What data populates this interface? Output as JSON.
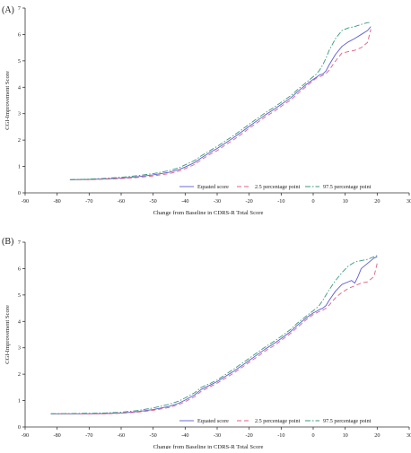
{
  "chart_data": [
    {
      "type": "line",
      "panel_label": "(A)",
      "xlabel": "Change from Baseline in CDRS-R Total Score",
      "ylabel": "CGI-Improvement Score",
      "xlim": [
        -90,
        30
      ],
      "ylim": [
        0,
        7
      ],
      "x_ticks": [
        "-90",
        "-80",
        "-70",
        "-60",
        "-50",
        "-40",
        "-30",
        "-20",
        "-10",
        "0",
        "10",
        "20",
        "30"
      ],
      "y_ticks": [
        "0",
        "1",
        "2",
        "3",
        "4",
        "5",
        "6",
        "7"
      ],
      "grid": false,
      "legend_position": "bottom-right",
      "series": [
        {
          "name": "Equated score",
          "color": "#5b5bd6",
          "dash": "solid",
          "points": [
            [
              -76,
              0.5
            ],
            [
              -70,
              0.51
            ],
            [
              -65,
              0.53
            ],
            [
              -60,
              0.56
            ],
            [
              -55,
              0.61
            ],
            [
              -50,
              0.68
            ],
            [
              -45,
              0.78
            ],
            [
              -42,
              0.88
            ],
            [
              -40,
              0.98
            ],
            [
              -37,
              1.15
            ],
            [
              -35,
              1.32
            ],
            [
              -32,
              1.55
            ],
            [
              -30,
              1.68
            ],
            [
              -27,
              1.92
            ],
            [
              -25,
              2.08
            ],
            [
              -22,
              2.34
            ],
            [
              -20,
              2.52
            ],
            [
              -17,
              2.78
            ],
            [
              -15,
              2.95
            ],
            [
              -12,
              3.18
            ],
            [
              -10,
              3.35
            ],
            [
              -7,
              3.6
            ],
            [
              -5,
              3.82
            ],
            [
              -2,
              4.12
            ],
            [
              0,
              4.3
            ],
            [
              1,
              4.38
            ],
            [
              2,
              4.47
            ],
            [
              3,
              4.5
            ],
            [
              4,
              4.62
            ],
            [
              5,
              4.85
            ],
            [
              7,
              5.25
            ],
            [
              9,
              5.55
            ],
            [
              11,
              5.72
            ],
            [
              13,
              5.85
            ],
            [
              15,
              6.0
            ],
            [
              17,
              6.15
            ],
            [
              18,
              6.3
            ]
          ]
        },
        {
          "name": "2.5 percentage point",
          "color": "#e06080",
          "dash": "dashed",
          "points": [
            [
              -76,
              0.5
            ],
            [
              -70,
              0.5
            ],
            [
              -65,
              0.52
            ],
            [
              -60,
              0.54
            ],
            [
              -55,
              0.58
            ],
            [
              -50,
              0.64
            ],
            [
              -45,
              0.73
            ],
            [
              -42,
              0.82
            ],
            [
              -40,
              0.92
            ],
            [
              -37,
              1.08
            ],
            [
              -35,
              1.25
            ],
            [
              -32,
              1.48
            ],
            [
              -30,
              1.6
            ],
            [
              -27,
              1.85
            ],
            [
              -25,
              2.0
            ],
            [
              -22,
              2.26
            ],
            [
              -20,
              2.45
            ],
            [
              -17,
              2.7
            ],
            [
              -15,
              2.88
            ],
            [
              -12,
              3.1
            ],
            [
              -10,
              3.28
            ],
            [
              -7,
              3.52
            ],
            [
              -5,
              3.74
            ],
            [
              -2,
              4.05
            ],
            [
              0,
              4.25
            ],
            [
              1,
              4.35
            ],
            [
              2,
              4.4
            ],
            [
              3,
              4.45
            ],
            [
              4,
              4.52
            ],
            [
              5,
              4.65
            ],
            [
              7,
              5.0
            ],
            [
              9,
              5.3
            ],
            [
              11,
              5.35
            ],
            [
              13,
              5.4
            ],
            [
              15,
              5.5
            ],
            [
              17,
              5.7
            ],
            [
              18,
              6.2
            ]
          ]
        },
        {
          "name": "97.5 percentage point",
          "color": "#3a9a7a",
          "dash": "dashdot",
          "points": [
            [
              -76,
              0.5
            ],
            [
              -70,
              0.52
            ],
            [
              -65,
              0.55
            ],
            [
              -60,
              0.59
            ],
            [
              -55,
              0.65
            ],
            [
              -50,
              0.73
            ],
            [
              -45,
              0.84
            ],
            [
              -42,
              0.95
            ],
            [
              -40,
              1.06
            ],
            [
              -37,
              1.23
            ],
            [
              -35,
              1.4
            ],
            [
              -32,
              1.62
            ],
            [
              -30,
              1.76
            ],
            [
              -27,
              2.0
            ],
            [
              -25,
              2.16
            ],
            [
              -22,
              2.42
            ],
            [
              -20,
              2.6
            ],
            [
              -17,
              2.86
            ],
            [
              -15,
              3.03
            ],
            [
              -12,
              3.26
            ],
            [
              -10,
              3.43
            ],
            [
              -7,
              3.68
            ],
            [
              -5,
              3.9
            ],
            [
              -2,
              4.2
            ],
            [
              0,
              4.4
            ],
            [
              1,
              4.5
            ],
            [
              2,
              4.65
            ],
            [
              3,
              4.85
            ],
            [
              4,
              5.1
            ],
            [
              5,
              5.4
            ],
            [
              7,
              5.85
            ],
            [
              9,
              6.15
            ],
            [
              11,
              6.25
            ],
            [
              13,
              6.3
            ],
            [
              15,
              6.38
            ],
            [
              17,
              6.45
            ],
            [
              18,
              6.45
            ]
          ]
        }
      ]
    },
    {
      "type": "line",
      "panel_label": "(B)",
      "xlabel": "Change from Baseline in CDRS-R Total Score",
      "ylabel": "CGI-Improvement Score",
      "xlim": [
        -90,
        30
      ],
      "ylim": [
        0,
        7
      ],
      "x_ticks": [
        "-90",
        "-80",
        "-70",
        "-60",
        "-50",
        "-40",
        "-30",
        "-20",
        "-10",
        "0",
        "10",
        "20",
        "30"
      ],
      "y_ticks": [
        "0",
        "1",
        "2",
        "3",
        "4",
        "5",
        "6",
        "7"
      ],
      "grid": false,
      "legend_position": "bottom-right",
      "series": [
        {
          "name": "Equated score",
          "color": "#5b5bd6",
          "dash": "solid",
          "points": [
            [
              -82,
              0.5
            ],
            [
              -75,
              0.5
            ],
            [
              -70,
              0.5
            ],
            [
              -65,
              0.51
            ],
            [
              -60,
              0.53
            ],
            [
              -55,
              0.58
            ],
            [
              -50,
              0.66
            ],
            [
              -45,
              0.78
            ],
            [
              -42,
              0.9
            ],
            [
              -40,
              1.02
            ],
            [
              -37,
              1.22
            ],
            [
              -35,
              1.42
            ],
            [
              -32,
              1.6
            ],
            [
              -30,
              1.72
            ],
            [
              -27,
              1.95
            ],
            [
              -25,
              2.1
            ],
            [
              -22,
              2.35
            ],
            [
              -20,
              2.52
            ],
            [
              -17,
              2.78
            ],
            [
              -15,
              2.95
            ],
            [
              -12,
              3.18
            ],
            [
              -10,
              3.35
            ],
            [
              -7,
              3.62
            ],
            [
              -5,
              3.85
            ],
            [
              -2,
              4.15
            ],
            [
              0,
              4.32
            ],
            [
              1,
              4.38
            ],
            [
              2,
              4.45
            ],
            [
              3,
              4.5
            ],
            [
              4,
              4.6
            ],
            [
              5,
              4.8
            ],
            [
              7,
              5.15
            ],
            [
              9,
              5.4
            ],
            [
              11,
              5.5
            ],
            [
              12,
              5.55
            ],
            [
              13,
              5.45
            ],
            [
              14,
              5.7
            ],
            [
              15,
              6.0
            ],
            [
              17,
              6.2
            ],
            [
              19,
              6.4
            ],
            [
              20,
              6.45
            ]
          ]
        },
        {
          "name": "2.5 percentage point",
          "color": "#e06080",
          "dash": "dashed",
          "points": [
            [
              -82,
              0.5
            ],
            [
              -75,
              0.5
            ],
            [
              -70,
              0.5
            ],
            [
              -65,
              0.5
            ],
            [
              -60,
              0.52
            ],
            [
              -55,
              0.56
            ],
            [
              -50,
              0.63
            ],
            [
              -45,
              0.74
            ],
            [
              -42,
              0.85
            ],
            [
              -40,
              0.96
            ],
            [
              -37,
              1.15
            ],
            [
              -35,
              1.35
            ],
            [
              -32,
              1.54
            ],
            [
              -30,
              1.66
            ],
            [
              -27,
              1.88
            ],
            [
              -25,
              2.03
            ],
            [
              -22,
              2.28
            ],
            [
              -20,
              2.45
            ],
            [
              -17,
              2.7
            ],
            [
              -15,
              2.88
            ],
            [
              -12,
              3.1
            ],
            [
              -10,
              3.28
            ],
            [
              -7,
              3.55
            ],
            [
              -5,
              3.77
            ],
            [
              -2,
              4.08
            ],
            [
              0,
              4.26
            ],
            [
              1,
              4.32
            ],
            [
              2,
              4.38
            ],
            [
              3,
              4.42
            ],
            [
              4,
              4.5
            ],
            [
              5,
              4.62
            ],
            [
              7,
              4.9
            ],
            [
              9,
              5.1
            ],
            [
              11,
              5.25
            ],
            [
              13,
              5.35
            ],
            [
              15,
              5.45
            ],
            [
              17,
              5.5
            ],
            [
              19,
              5.7
            ],
            [
              20,
              6.2
            ]
          ]
        },
        {
          "name": "97.5 percentage point",
          "color": "#3a9a7a",
          "dash": "dashdot",
          "points": [
            [
              -82,
              0.5
            ],
            [
              -75,
              0.51
            ],
            [
              -70,
              0.52
            ],
            [
              -65,
              0.53
            ],
            [
              -60,
              0.56
            ],
            [
              -55,
              0.62
            ],
            [
              -50,
              0.72
            ],
            [
              -45,
              0.86
            ],
            [
              -42,
              0.98
            ],
            [
              -40,
              1.1
            ],
            [
              -37,
              1.3
            ],
            [
              -35,
              1.5
            ],
            [
              -32,
              1.66
            ],
            [
              -30,
              1.78
            ],
            [
              -27,
              2.02
            ],
            [
              -25,
              2.18
            ],
            [
              -22,
              2.43
            ],
            [
              -20,
              2.6
            ],
            [
              -17,
              2.86
            ],
            [
              -15,
              3.03
            ],
            [
              -12,
              3.26
            ],
            [
              -10,
              3.43
            ],
            [
              -7,
              3.7
            ],
            [
              -5,
              3.93
            ],
            [
              -2,
              4.22
            ],
            [
              0,
              4.4
            ],
            [
              1,
              4.5
            ],
            [
              2,
              4.62
            ],
            [
              3,
              4.8
            ],
            [
              4,
              5.0
            ],
            [
              5,
              5.2
            ],
            [
              7,
              5.55
            ],
            [
              9,
              5.85
            ],
            [
              11,
              6.1
            ],
            [
              13,
              6.25
            ],
            [
              15,
              6.3
            ],
            [
              17,
              6.35
            ],
            [
              19,
              6.45
            ],
            [
              20,
              6.5
            ]
          ]
        }
      ]
    }
  ]
}
